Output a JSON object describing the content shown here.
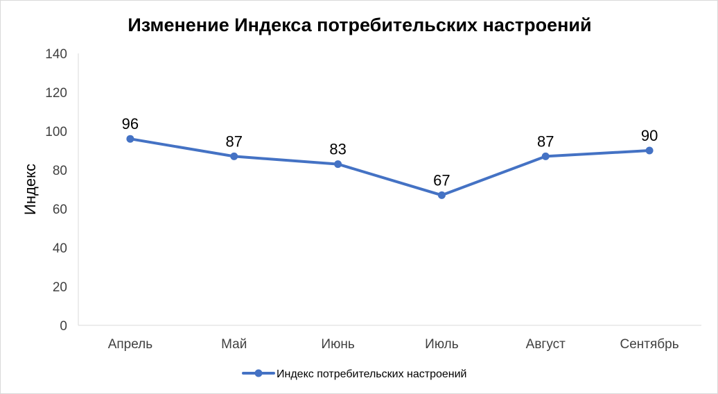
{
  "chart_data": {
    "type": "line",
    "title": "Изменение Индекса потребительских настроений",
    "xlabel": "",
    "ylabel": "Индекс",
    "categories": [
      "Апрель",
      "Май",
      "Июнь",
      "Июль",
      "Август",
      "Сентябрь"
    ],
    "series": [
      {
        "name": "Индекс потребительских настроений",
        "values": [
          96,
          87,
          83,
          67,
          87,
          90
        ],
        "color": "#4472c4",
        "data_labels": [
          "96",
          "87",
          "83",
          "67",
          "87",
          "90"
        ]
      }
    ],
    "yticks": [
      "0",
      "20",
      "40",
      "60",
      "80",
      "100",
      "120",
      "140"
    ],
    "ylim": [
      0,
      140
    ],
    "ytick_step": 20,
    "grid": false,
    "legend_position": "bottom"
  }
}
